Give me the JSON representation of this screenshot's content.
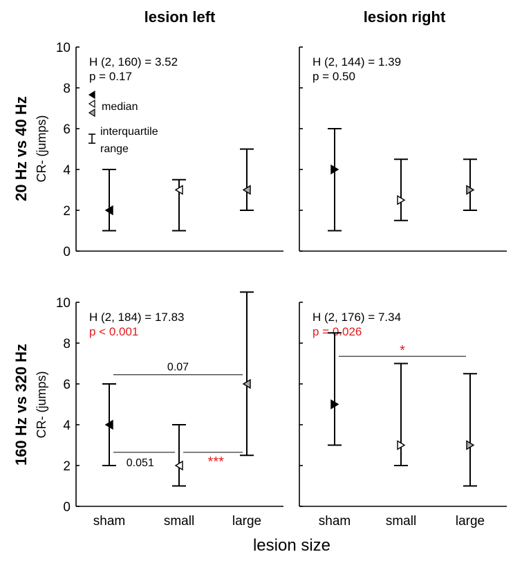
{
  "chart_data": [
    {
      "type": "scatter",
      "panel": "top-left",
      "title": "lesion left",
      "row_label": "20 Hz vs 40 Hz",
      "ylabel": "CR- (jumps)",
      "xlabel": "",
      "ylim": [
        0,
        10
      ],
      "yticks": [
        "0",
        "2",
        "4",
        "6",
        "8",
        "10"
      ],
      "categories": [
        "sham",
        "small",
        "large"
      ],
      "median": [
        2,
        3,
        3
      ],
      "q_low": [
        1,
        1,
        2
      ],
      "q_high": [
        4,
        3.5,
        5
      ],
      "stat_line1": "H (2, 160) = 3.52",
      "stat_line2": "p = 0.17",
      "stat_line2_color": "#000000",
      "legend": {
        "median": "median",
        "iqr_line1": "interquartile",
        "iqr_line2": "range"
      },
      "comparisons": []
    },
    {
      "type": "scatter",
      "panel": "top-right",
      "title": "lesion right",
      "ylabel": "",
      "xlabel": "",
      "ylim": [
        0,
        10
      ],
      "yticks": [],
      "categories": [
        "sham",
        "small",
        "large"
      ],
      "median": [
        4,
        2.5,
        3
      ],
      "q_low": [
        1,
        1.5,
        2
      ],
      "q_high": [
        6,
        4.5,
        4.5
      ],
      "stat_line1": "H (2, 144) = 1.39",
      "stat_line2": "p = 0.50",
      "stat_line2_color": "#000000",
      "comparisons": []
    },
    {
      "type": "scatter",
      "panel": "bottom-left",
      "row_label": "160 Hz vs 320 Hz",
      "ylabel": "CR- (jumps)",
      "xlabel": "",
      "ylim": [
        0,
        10
      ],
      "yticks": [
        "0",
        "2",
        "4",
        "6",
        "8",
        "10"
      ],
      "categories": [
        "sham",
        "small",
        "large"
      ],
      "median": [
        4,
        2,
        6
      ],
      "q_low": [
        2,
        1,
        2.5
      ],
      "q_high": [
        6,
        4,
        10.5
      ],
      "stat_line1": "H (2,  184) = 17.83",
      "stat_line2": "p < 0.001",
      "stat_line2_color": "#e31a1c",
      "comparisons": [
        {
          "from": 0,
          "to": 2,
          "y": 6.45,
          "label": "0.07",
          "label_color": "#000000",
          "label_side": "above",
          "label_at": 1
        },
        {
          "from": 0,
          "to": 1,
          "y": 2.65,
          "label": "0.051",
          "label_color": "#000000",
          "label_side": "below",
          "label_at": 0.45
        },
        {
          "from": 1,
          "to": 2,
          "y": 2.65,
          "label": "***",
          "label_color": "#e31a1c",
          "label_side": "below",
          "label_at": 1.55
        }
      ]
    },
    {
      "type": "scatter",
      "panel": "bottom-right",
      "ylabel": "",
      "xlabel": "lesion size",
      "ylim": [
        0,
        10
      ],
      "yticks": [],
      "categories": [
        "sham",
        "small",
        "large"
      ],
      "median": [
        5,
        3,
        3
      ],
      "q_low": [
        3,
        2,
        1
      ],
      "q_high": [
        8.5,
        7,
        6.5
      ],
      "stat_line1": "H (2, 176) = 7.34",
      "stat_line2": "p = 0.026",
      "stat_line2_color": "#e31a1c",
      "comparisons": [
        {
          "from": 0,
          "to": 2,
          "y": 7.35,
          "label": "*",
          "label_color": "#e31a1c",
          "label_side": "above",
          "label_at": 1
        }
      ]
    }
  ],
  "shared": {
    "xlabel": "lesion size",
    "marker_fills": [
      "#000000",
      "#ffffff",
      "#aaaaaa"
    ]
  }
}
